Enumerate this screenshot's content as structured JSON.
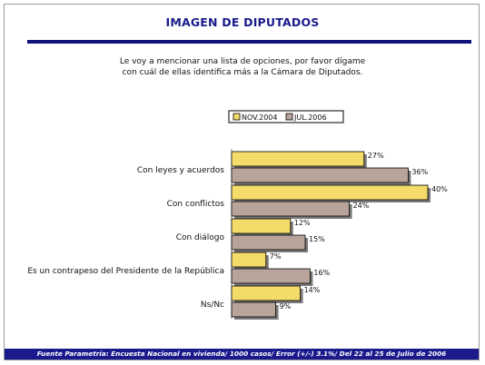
{
  "title": "IMAGEN DE DIPUTADOS",
  "question": {
    "line1": "Le voy a mencionar una lista de opciones, por favor dígame",
    "line2": "con cuál de ellas identifica más a la Cámara de Diputados."
  },
  "footer": "Fuente Parametría: Encuesta Nacional en vivienda/ 1000 casos/ Error (+/-) 3.1%/ Del 22 al 25 de Julio de 2006",
  "colors": {
    "series1": "#f5dc6a",
    "series2": "#b8a49a",
    "accent": "#1a1a8c"
  },
  "chart_data": {
    "type": "bar",
    "orientation": "horizontal",
    "categories": [
      "Con leyes y acuerdos",
      "Con conflictos",
      "Con diálogo",
      "Es un contrapeso del Presidente de la República",
      "Ns/Nc"
    ],
    "series": [
      {
        "name": "NOV.2004",
        "values": [
          27,
          40,
          12,
          7,
          14
        ]
      },
      {
        "name": "JUL.2006",
        "values": [
          36,
          24,
          15,
          16,
          9
        ]
      }
    ],
    "value_suffix": "%",
    "xlim": [
      0,
      40
    ],
    "legend": "top",
    "grid": false
  }
}
